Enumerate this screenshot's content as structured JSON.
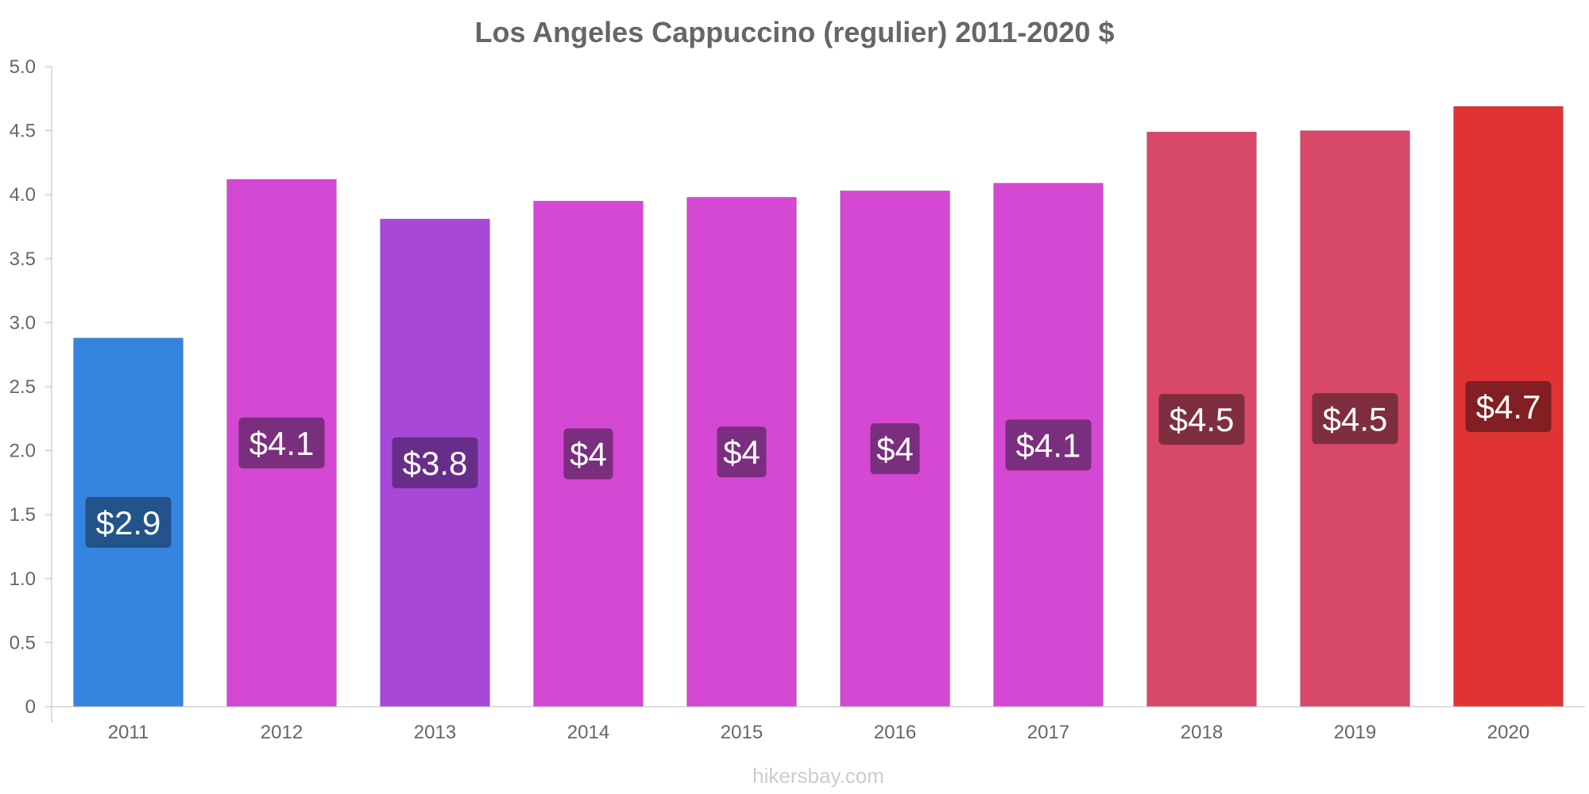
{
  "chart_data": {
    "type": "bar",
    "title": "Los Angeles Cappuccino (regulier) 2011-2020 $",
    "categories": [
      "2011",
      "2012",
      "2013",
      "2014",
      "2015",
      "2016",
      "2017",
      "2018",
      "2019",
      "2020"
    ],
    "values": [
      2.88,
      4.12,
      3.81,
      3.95,
      3.98,
      4.03,
      4.09,
      4.49,
      4.5,
      4.69
    ],
    "data_labels": [
      "$2.9",
      "$4.1",
      "$3.8",
      "$4",
      "$4",
      "$4",
      "$4.1",
      "$4.5",
      "$4.5",
      "$4.7"
    ],
    "bar_colors": [
      "#3584e0",
      "#d448d4",
      "#a848d8",
      "#d448d4",
      "#d448d4",
      "#d448d4",
      "#d448d4",
      "#d84868",
      "#d84868",
      "#e03434"
    ],
    "label_bg_colors": [
      "#1f4a7a",
      "#6a2a6e",
      "#5a2a7a",
      "#6a2a6e",
      "#6a2a6e",
      "#6a2a6e",
      "#6a2a6e",
      "#6e2a38",
      "#6e2a38",
      "#701c20"
    ],
    "ylim": [
      0,
      5
    ],
    "yticks": [
      "0",
      "0.5",
      "1.0",
      "1.5",
      "2.0",
      "2.5",
      "3.0",
      "3.5",
      "4.0",
      "4.5",
      "5.0"
    ],
    "xlabel": "",
    "ylabel": "",
    "grid": false,
    "legend": "none"
  },
  "watermark": "hikersbay.com"
}
